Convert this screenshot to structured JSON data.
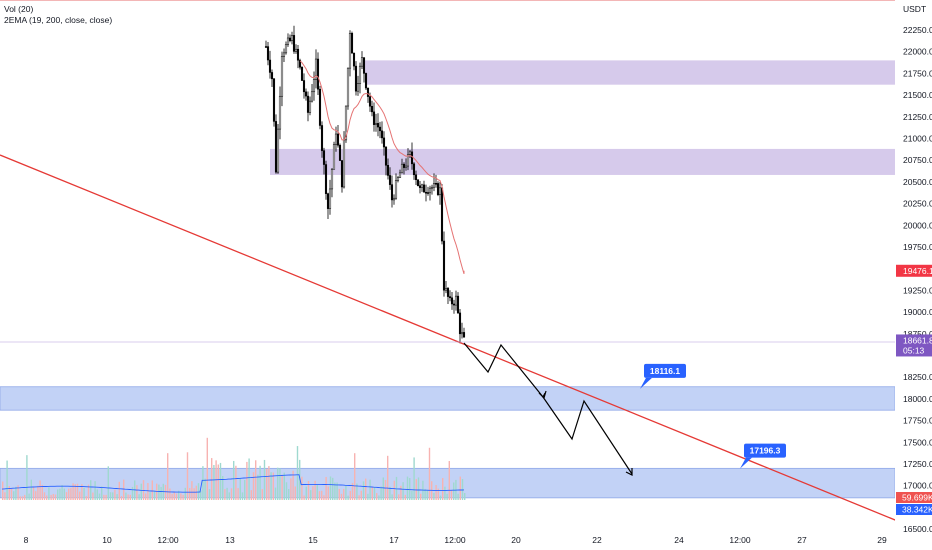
{
  "legend": {
    "volume": "Vol (20)",
    "ema": "2EMA (19, 200, close, close)"
  },
  "price_axis": {
    "currency": "USDT",
    "ticks": [
      "22250.0",
      "22000.0",
      "21750.0",
      "21500.0",
      "21250.0",
      "21000.0",
      "20750.0",
      "20500.0",
      "20250.0",
      "20000.0",
      "19750.0",
      "19500.0",
      "19250.0",
      "19000.0",
      "18750.0",
      "18250.0",
      "18000.0",
      "17750.0",
      "17500.0",
      "17250.0",
      "17000.0",
      "16500.0"
    ],
    "tick_values": [
      22250,
      22000,
      21750,
      21500,
      21250,
      21000,
      20750,
      20500,
      20250,
      20000,
      19750,
      19500,
      19250,
      19000,
      18750,
      18250,
      18000,
      17750,
      17500,
      17250,
      17000,
      16500
    ],
    "last_price_label": "18661.8",
    "last_price": 18661.8,
    "countdown_label": "05:13",
    "ema_value_label": "19476.1",
    "ema_value": 19476.1,
    "volume_label": "59.699K",
    "volume_ma_label": "38.342K"
  },
  "time_axis": {
    "ticks": [
      "8",
      "10",
      "12:00",
      "13",
      "15",
      "17",
      "12:00",
      "20",
      "22",
      "24",
      "12:00",
      "27",
      "29"
    ]
  },
  "callouts": [
    {
      "label": "18116.1",
      "value": 18116.1
    },
    {
      "label": "17196.3",
      "value": 17196.3
    }
  ],
  "zones": [
    {
      "name": "supply-zone-upper",
      "from": 21620,
      "to": 21900,
      "color": "#d1c4e9"
    },
    {
      "name": "supply-zone-lower",
      "from": 20580,
      "to": 20880,
      "color": "#d1c4e9"
    },
    {
      "name": "demand-zone-upper",
      "from": 17870,
      "to": 18140,
      "color": "#bbcdf5"
    },
    {
      "name": "demand-zone-lower",
      "from": 16860,
      "to": 17200,
      "color": "#bbcdf5"
    }
  ],
  "colors": {
    "up": "#26a69a",
    "down": "#ef5350",
    "trendline": "#e53935",
    "ema": "#e57373",
    "callout": "#2962ff",
    "last_price_tag": "#7e57c2",
    "ema_tag": "#f23645",
    "volume_ma": "#2962ff"
  }
}
